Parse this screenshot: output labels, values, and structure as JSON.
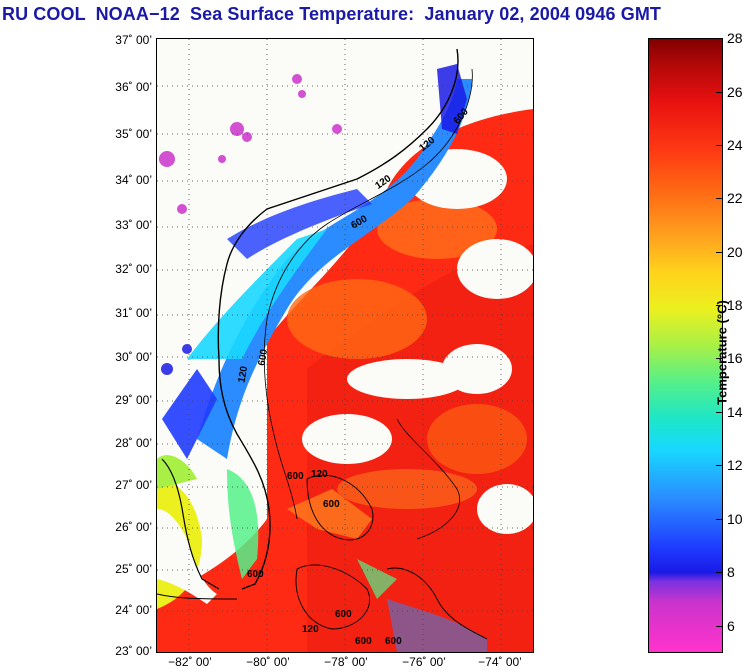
{
  "title": "RU COOL  NOAA−12  Sea Surface Temperature:  January 02, 2004 0946 GMT",
  "map": {
    "lat_labels": [
      "37˚ 00’",
      "36˚ 00’",
      "35˚ 00’",
      "34˚ 00’",
      "33˚ 00’",
      "32˚ 00’",
      "31˚ 00’",
      "30˚ 00’",
      "29˚ 00’",
      "28˚ 00’",
      "27˚ 00’",
      "26˚ 00’",
      "25˚ 00’",
      "24˚ 00’",
      "23˚ 00’"
    ],
    "lon_labels": [
      "−82˚ 00’",
      "−80˚ 00’",
      "−78˚ 00’",
      "−76˚ 00’",
      "−74˚ 00’"
    ],
    "contour_labels": [
      "600",
      "120",
      "600",
      "120",
      "600",
      "120",
      "600",
      "120",
      "600",
      "600",
      "600",
      "120",
      "600",
      "600"
    ]
  },
  "colorbar": {
    "ticks": [
      "28",
      "26",
      "24",
      "22",
      "20",
      "18",
      "16",
      "14",
      "12",
      "10",
      "8",
      "6"
    ],
    "label": "Temperature (°C)"
  }
}
